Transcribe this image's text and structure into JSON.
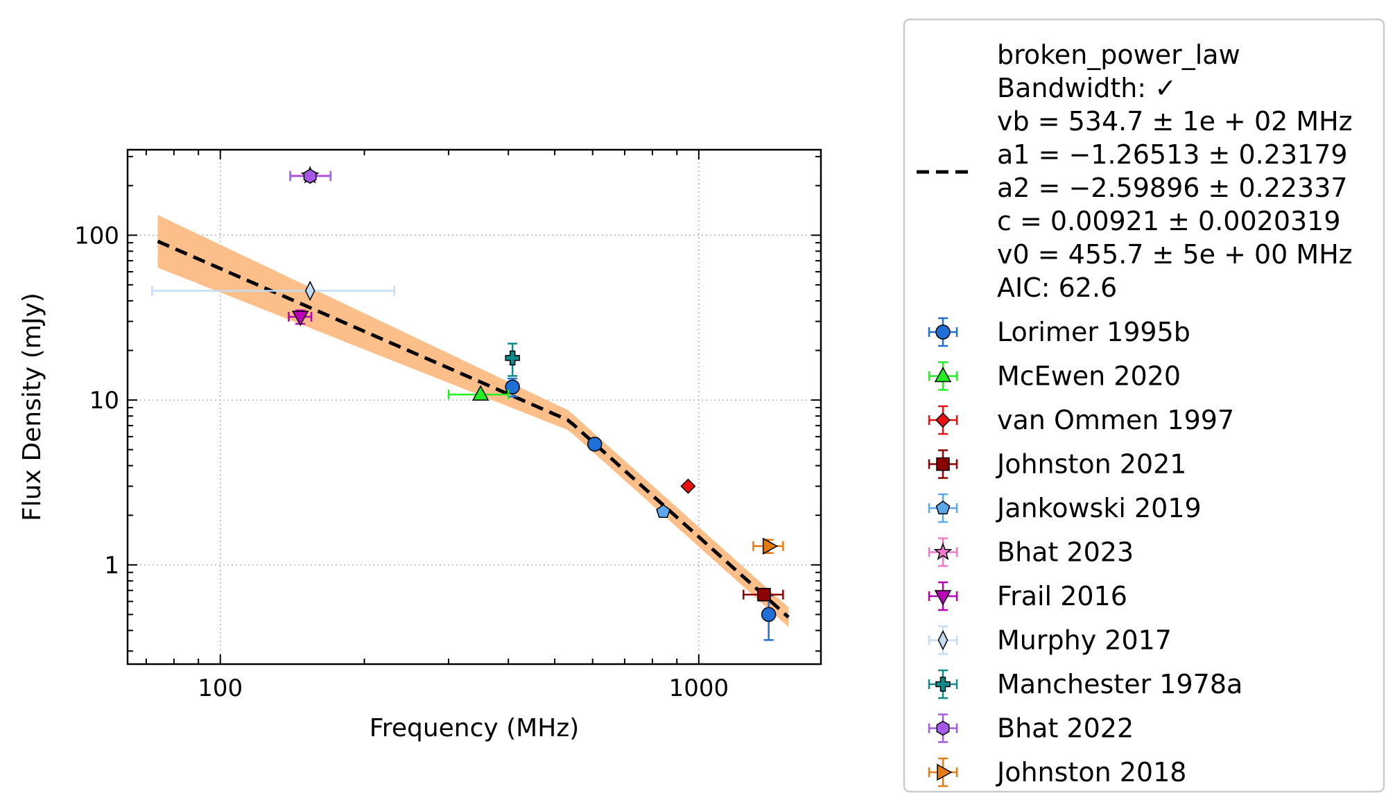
{
  "chart_data": {
    "type": "scatter",
    "xlabel": "Frequency (MHz)",
    "ylabel": "Flux Density (mJy)",
    "x_scale": "log",
    "y_scale": "log",
    "xlim": [
      64,
      1800
    ],
    "ylim": [
      0.25,
      330
    ],
    "x_ticks": [
      {
        "value": 100,
        "label": "100"
      },
      {
        "value": 1000,
        "label": "1000"
      }
    ],
    "y_ticks": [
      {
        "value": 1,
        "label": "1"
      },
      {
        "value": 10,
        "label": "10"
      },
      {
        "value": 100,
        "label": "100"
      }
    ],
    "grid": true,
    "legend_position": "outside-right",
    "fit": {
      "name": "broken_power_law",
      "label_lines": [
        "broken_power_law",
        "Bandwidth: ✓",
        "vb = 534.7 ± 1e + 02 MHz",
        "a1 = −1.26513 ± 0.23179",
        "a2 = −2.59896 ± 0.22337",
        "c = 0.00921 ± 0.0020319",
        "v0 = 455.7 ± 5e + 00 MHz",
        "AIC: 62.6"
      ],
      "vb": 534.7,
      "a1": -1.26513,
      "a2": -2.59896,
      "c": 0.00921,
      "v0": 455.7,
      "x_range": [
        74,
        1540
      ],
      "line_color": "#000000",
      "band_color": "#fdbf8a"
    },
    "series": [
      {
        "name": "Lorimer 1995b",
        "marker": "circle",
        "color": "#1f6fd6",
        "points": [
          {
            "x": 408,
            "y": 12.0,
            "ylo": 10.5,
            "yhi": 13.5
          },
          {
            "x": 606,
            "y": 5.4,
            "ylo": 5.0,
            "yhi": 5.8
          },
          {
            "x": 1400,
            "y": 0.5,
            "ylo": 0.35,
            "yhi": 0.65
          }
        ]
      },
      {
        "name": "McEwen 2020",
        "marker": "triangle-up",
        "color": "#22ee22",
        "points": [
          {
            "x": 350,
            "y": 10.8,
            "xlo": 300,
            "xhi": 400
          }
        ]
      },
      {
        "name": "van Ommen 1997",
        "marker": "diamond",
        "color": "#e81010",
        "points": [
          {
            "x": 950,
            "y": 3.0
          }
        ]
      },
      {
        "name": "Johnston 2021",
        "marker": "square",
        "color": "#8b0000",
        "points": [
          {
            "x": 1369,
            "y": 0.66,
            "xlo": 1240,
            "xhi": 1500
          }
        ]
      },
      {
        "name": "Jankowski 2019",
        "marker": "pentagon",
        "color": "#5aa7ec",
        "points": [
          {
            "x": 843,
            "y": 2.1
          }
        ]
      },
      {
        "name": "Bhat 2023",
        "marker": "star",
        "color": "#ee77cc",
        "points": [
          {
            "x": 154,
            "y": 230,
            "xlo": 140,
            "xhi": 170
          }
        ]
      },
      {
        "name": "Frail 2016",
        "marker": "triangle-down",
        "color": "#b700b7",
        "points": [
          {
            "x": 147,
            "y": 32,
            "ylo": 29,
            "yhi": 35,
            "xlo": 139,
            "xhi": 155
          }
        ]
      },
      {
        "name": "Murphy 2017",
        "marker": "thin-diamond",
        "color": "#c4ddf5",
        "points": [
          {
            "x": 154,
            "y": 46,
            "xlo": 72,
            "xhi": 231
          }
        ]
      },
      {
        "name": "Manchester 1978a",
        "marker": "plus",
        "color": "#0e8a8a",
        "points": [
          {
            "x": 408,
            "y": 18,
            "ylo": 14,
            "yhi": 22
          }
        ]
      },
      {
        "name": "Bhat 2022",
        "marker": "hexagon",
        "color": "#a45ae6",
        "points": [
          {
            "x": 154,
            "y": 228,
            "xlo": 140,
            "xhi": 170
          }
        ]
      },
      {
        "name": "Johnston 2018",
        "marker": "triangle-right",
        "color": "#e47a10",
        "points": [
          {
            "x": 1400,
            "y": 1.3,
            "xlo": 1300,
            "xhi": 1500,
            "ylo": 1.18,
            "yhi": 1.42
          }
        ]
      }
    ]
  }
}
